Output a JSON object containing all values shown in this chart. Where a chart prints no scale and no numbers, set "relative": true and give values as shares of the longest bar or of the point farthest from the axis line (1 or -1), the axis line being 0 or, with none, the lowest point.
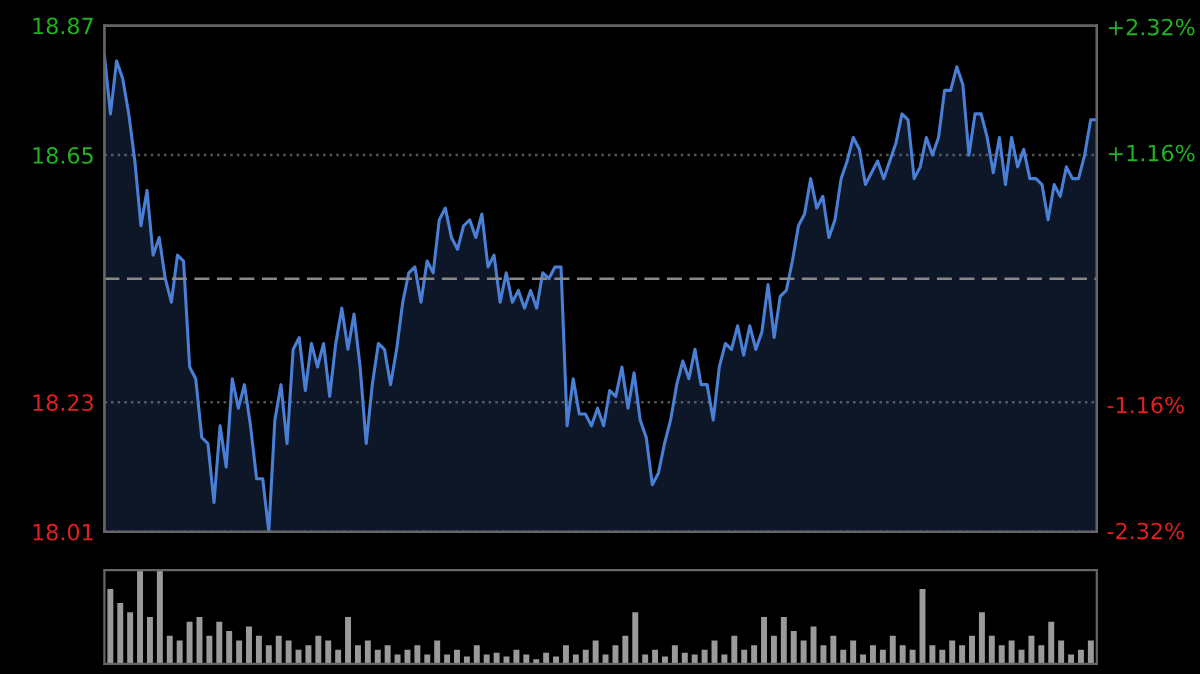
{
  "chart_data": [
    {
      "type": "area",
      "color": "#4a7fd6",
      "categories": [
        null,
        null,
        null,
        null,
        null,
        null,
        null,
        null,
        null,
        null,
        null,
        null,
        null,
        null,
        null,
        null,
        null,
        null,
        null,
        null,
        null,
        null,
        null,
        null,
        null,
        null,
        null,
        null,
        null,
        null,
        null,
        null,
        null,
        null,
        null,
        null,
        null,
        null,
        null,
        null,
        null,
        null,
        null,
        null,
        null,
        null,
        null,
        null,
        null,
        null,
        null,
        null,
        null,
        null,
        null,
        null,
        null,
        null,
        null,
        null,
        null,
        null,
        null,
        null,
        null,
        null,
        null,
        null,
        null,
        null,
        null,
        null,
        null,
        null,
        null,
        null,
        null,
        null,
        null,
        null,
        null,
        null,
        null,
        null,
        null,
        null,
        null,
        null,
        null,
        null,
        null,
        null,
        null,
        null,
        null,
        null,
        null,
        null,
        null,
        null,
        null,
        null,
        null,
        null,
        null,
        null,
        null,
        null,
        null,
        null,
        null,
        null,
        null,
        null,
        null,
        null,
        null,
        null,
        null,
        null,
        null,
        null,
        null,
        null,
        null,
        null,
        null,
        null,
        null,
        null,
        null,
        null,
        null,
        null,
        null,
        null,
        null,
        null,
        null,
        null,
        null,
        null,
        null,
        null,
        null,
        null,
        null,
        null,
        null,
        null,
        null,
        null,
        null,
        null,
        null,
        null,
        null,
        null,
        null,
        null,
        null,
        null,
        null,
        null
      ],
      "values": [
        18.82,
        18.72,
        18.81,
        18.78,
        18.72,
        18.64,
        18.53,
        18.59,
        18.48,
        18.51,
        18.44,
        18.4,
        18.48,
        18.47,
        18.29,
        18.27,
        18.17,
        18.16,
        18.06,
        18.19,
        18.12,
        18.27,
        18.22,
        18.26,
        18.19,
        18.1,
        18.1,
        18.01,
        18.2,
        18.26,
        18.16,
        18.32,
        18.34,
        18.25,
        18.33,
        18.29,
        18.33,
        18.24,
        18.33,
        18.39,
        18.32,
        18.38,
        18.29,
        18.16,
        18.26,
        18.33,
        18.32,
        18.26,
        18.32,
        18.4,
        18.45,
        18.46,
        18.4,
        18.47,
        18.45,
        18.54,
        18.56,
        18.51,
        18.49,
        18.53,
        18.54,
        18.51,
        18.55,
        18.46,
        18.48,
        18.4,
        18.45,
        18.4,
        18.42,
        18.39,
        18.42,
        18.39,
        18.45,
        18.44,
        18.46,
        18.46,
        18.19,
        18.27,
        18.21,
        18.21,
        18.19,
        18.22,
        18.19,
        18.25,
        18.24,
        18.29,
        18.22,
        18.28,
        18.2,
        18.17,
        18.09,
        18.11,
        18.16,
        18.2,
        18.26,
        18.3,
        18.27,
        18.32,
        18.26,
        18.26,
        18.2,
        18.29,
        18.33,
        18.32,
        18.36,
        18.31,
        18.36,
        18.32,
        18.35,
        18.43,
        18.34,
        18.41,
        18.42,
        18.47,
        18.53,
        18.55,
        18.61,
        18.56,
        18.58,
        18.51,
        18.54,
        18.61,
        18.64,
        18.68,
        18.66,
        18.6,
        18.62,
        18.64,
        18.61,
        18.64,
        18.67,
        18.72,
        18.71,
        18.61,
        18.63,
        18.68,
        18.65,
        18.68,
        18.76,
        18.76,
        18.8,
        18.77,
        18.65,
        18.72,
        18.72,
        18.68,
        18.62,
        18.68,
        18.6,
        18.68,
        18.63,
        18.66,
        18.61,
        18.61,
        18.6,
        18.54,
        18.6,
        18.58,
        18.63,
        18.61,
        18.61,
        18.65,
        18.71,
        18.71
      ],
      "ylim": [
        18.01,
        18.87
      ],
      "yticks": [
        18.01,
        18.23,
        18.65,
        18.87
      ],
      "y2lim": [
        -2.33,
        2.33
      ],
      "y2ticks": [
        {
          "value": -2.32,
          "label": "-2.32%"
        },
        {
          "value": -1.16,
          "label": "-1.16%"
        },
        {
          "value": 1.16,
          "label": "+1.16%"
        },
        {
          "value": 2.32,
          "label": "+2.32%"
        }
      ],
      "ref_lines": [
        {
          "axis": "y",
          "value": 18.44,
          "color": "#888888",
          "line_style": "dashed"
        }
      ],
      "grid": "y"
    },
    {
      "type": "bar",
      "color": "#9a9a9a",
      "relative": true,
      "categories": [
        null,
        null,
        null,
        null,
        null,
        null,
        null,
        null,
        null,
        null,
        null,
        null,
        null,
        null,
        null,
        null,
        null,
        null,
        null,
        null,
        null,
        null,
        null,
        null,
        null,
        null,
        null,
        null,
        null,
        null,
        null,
        null,
        null,
        null,
        null,
        null,
        null,
        null,
        null,
        null,
        null,
        null,
        null,
        null,
        null,
        null,
        null,
        null,
        null,
        null,
        null,
        null,
        null,
        null,
        null,
        null,
        null,
        null,
        null,
        null,
        null,
        null,
        null,
        null,
        null,
        null,
        null,
        null,
        null,
        null,
        null,
        null,
        null,
        null,
        null,
        null,
        null,
        null,
        null,
        null,
        null,
        null,
        null,
        null,
        null,
        null,
        null,
        null,
        null,
        null,
        null,
        null,
        null,
        null,
        null,
        null,
        null,
        null,
        null,
        null
      ],
      "values": [
        0.8,
        0.65,
        0.55,
        1.0,
        0.5,
        1.0,
        0.3,
        0.25,
        0.45,
        0.5,
        0.3,
        0.45,
        0.35,
        0.25,
        0.4,
        0.3,
        0.2,
        0.3,
        0.25,
        0.15,
        0.2,
        0.3,
        0.25,
        0.15,
        0.5,
        0.2,
        0.25,
        0.15,
        0.2,
        0.1,
        0.15,
        0.2,
        0.1,
        0.25,
        0.1,
        0.15,
        0.08,
        0.2,
        0.1,
        0.12,
        0.08,
        0.15,
        0.1,
        0.05,
        0.12,
        0.08,
        0.2,
        0.1,
        0.15,
        0.25,
        0.1,
        0.2,
        0.3,
        0.55,
        0.1,
        0.15,
        0.08,
        0.2,
        0.12,
        0.1,
        0.15,
        0.25,
        0.1,
        0.3,
        0.15,
        0.2,
        0.5,
        0.3,
        0.5,
        0.35,
        0.25,
        0.4,
        0.2,
        0.3,
        0.15,
        0.25,
        0.1,
        0.2,
        0.15,
        0.3,
        0.2,
        0.15,
        0.8,
        0.2,
        0.15,
        0.25,
        0.2,
        0.3,
        0.55,
        0.3,
        0.2,
        0.25,
        0.15,
        0.3,
        0.2,
        0.45,
        0.25,
        0.1,
        0.15,
        0.25
      ]
    }
  ]
}
